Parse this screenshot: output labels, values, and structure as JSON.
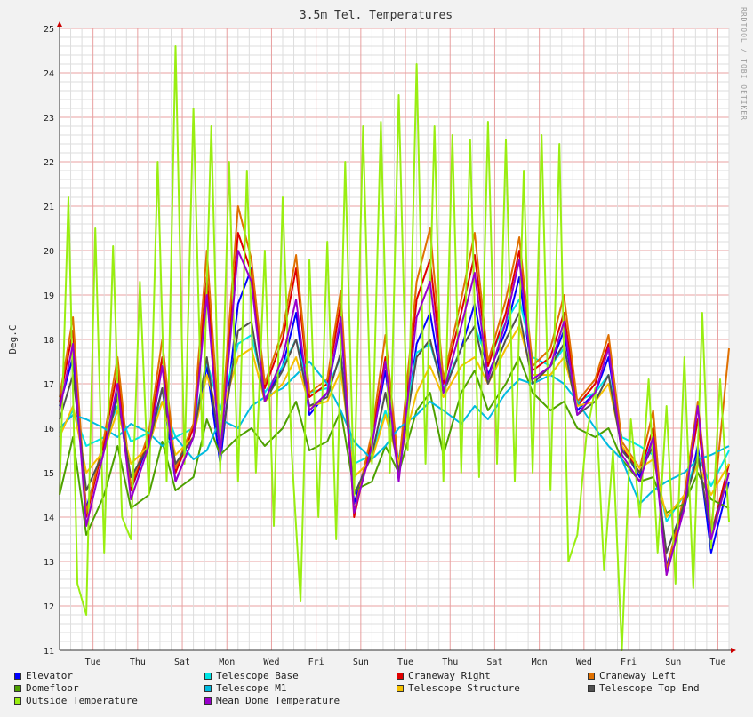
{
  "chart_data": {
    "type": "line",
    "title": "3.5m Tel. Temperatures",
    "ylabel": "Deg.C",
    "xlabel": "",
    "ylim": [
      11,
      25
    ],
    "yticks": [
      11,
      12,
      13,
      14,
      15,
      16,
      17,
      18,
      19,
      20,
      21,
      22,
      23,
      24,
      25
    ],
    "x_range_days": [
      0,
      15
    ],
    "xticks": [
      {
        "label": "Tue",
        "day": 0.75
      },
      {
        "label": "Thu",
        "day": 1.75
      },
      {
        "label": "Sat",
        "day": 2.75
      },
      {
        "label": "Mon",
        "day": 3.75
      },
      {
        "label": "Wed",
        "day": 4.75
      },
      {
        "label": "Fri",
        "day": 5.75
      },
      {
        "label": "Sun",
        "day": 6.75
      },
      {
        "label": "Tue",
        "day": 7.75
      },
      {
        "label": "Thu",
        "day": 8.75
      },
      {
        "label": "Sat",
        "day": 9.75
      },
      {
        "label": "Mon",
        "day": 10.75
      },
      {
        "label": "Wed",
        "day": 11.75
      },
      {
        "label": "Fri",
        "day": 12.75
      },
      {
        "label": "Sun",
        "day": 13.75
      },
      {
        "label": "Tue",
        "day": 14.75
      }
    ],
    "grid": true,
    "legend_position": "bottom",
    "series": [
      {
        "name": "Elevator",
        "color": "#0000ff",
        "x": [
          0,
          0.3,
          0.6,
          1,
          1.3,
          1.6,
          2,
          2.3,
          2.6,
          3,
          3.3,
          3.6,
          4,
          4.3,
          4.6,
          5,
          5.3,
          5.6,
          6,
          6.3,
          6.6,
          7,
          7.3,
          7.6,
          8,
          8.3,
          8.6,
          9,
          9.3,
          9.6,
          10,
          10.3,
          10.6,
          11,
          11.3,
          11.6,
          12,
          12.3,
          12.6,
          13,
          13.3,
          13.6,
          14,
          14.3,
          14.6,
          15
        ],
        "values": [
          16.5,
          17.6,
          14.2,
          15.6,
          16.8,
          14.6,
          15.7,
          16.9,
          14.8,
          15.8,
          17.4,
          15.2,
          18.8,
          19.6,
          16.6,
          17.4,
          18.6,
          16.3,
          16.8,
          18.4,
          14.3,
          15.7,
          17.3,
          14.9,
          17.9,
          18.6,
          16.8,
          17.8,
          18.8,
          17.2,
          18.2,
          19.4,
          17.1,
          17.4,
          18.2,
          16.4,
          16.8,
          17.6,
          15.6,
          14.9,
          15.8,
          12.9,
          14.2,
          15.6,
          13.2,
          14.8
        ]
      },
      {
        "name": "Telescope Base",
        "color": "#00e5e5",
        "x": [
          0,
          0.3,
          0.6,
          1,
          1.3,
          1.6,
          2,
          2.3,
          2.6,
          3,
          3.3,
          3.6,
          4,
          4.3,
          4.6,
          5,
          5.3,
          5.6,
          6,
          6.3,
          6.6,
          7,
          7.3,
          7.6,
          8,
          8.3,
          8.6,
          9,
          9.3,
          9.6,
          10,
          10.3,
          10.6,
          11,
          11.3,
          11.6,
          12,
          12.3,
          12.6,
          13,
          13.3,
          13.6,
          14,
          14.3,
          14.6,
          15
        ],
        "values": [
          15.9,
          16.4,
          15.6,
          15.8,
          16.5,
          15.7,
          15.9,
          16.6,
          15.8,
          16.0,
          17.5,
          16.4,
          17.9,
          18.1,
          16.8,
          17.4,
          18.0,
          16.8,
          16.9,
          17.6,
          15.2,
          15.4,
          16.4,
          15.3,
          17.7,
          17.9,
          16.9,
          17.8,
          18.3,
          17.5,
          18.4,
          18.9,
          17.6,
          17.4,
          17.8,
          16.6,
          16.8,
          17.2,
          15.8,
          15.6,
          15.4,
          13.9,
          14.5,
          15.4,
          14.7,
          15.5
        ]
      },
      {
        "name": "Craneway Right",
        "color": "#e00000",
        "x": [
          0,
          0.3,
          0.6,
          1,
          1.3,
          1.6,
          2,
          2.3,
          2.6,
          3,
          3.3,
          3.6,
          4,
          4.3,
          4.6,
          5,
          5.3,
          5.6,
          6,
          6.3,
          6.6,
          7,
          7.3,
          7.6,
          8,
          8.3,
          8.6,
          9,
          9.3,
          9.6,
          10,
          10.3,
          10.6,
          11,
          11.3,
          11.6,
          12,
          12.3,
          12.6,
          13,
          13.3,
          13.6,
          14,
          14.3,
          14.6,
          15
        ],
        "values": [
          16.6,
          18.2,
          14.0,
          15.7,
          17.3,
          14.6,
          15.8,
          17.6,
          15.0,
          16.0,
          19.4,
          15.6,
          20.4,
          19.5,
          16.9,
          18.0,
          19.6,
          16.7,
          17.0,
          18.8,
          14.0,
          15.8,
          17.6,
          15.0,
          18.9,
          19.8,
          17.0,
          18.6,
          19.9,
          17.4,
          18.6,
          20.0,
          17.3,
          17.6,
          18.6,
          16.5,
          17.0,
          17.9,
          15.6,
          15.0,
          16.0,
          12.7,
          14.4,
          16.2,
          13.6,
          15.2
        ]
      },
      {
        "name": "Craneway Left",
        "color": "#e07000",
        "x": [
          0,
          0.3,
          0.6,
          1,
          1.3,
          1.6,
          2,
          2.3,
          2.6,
          3,
          3.3,
          3.6,
          4,
          4.3,
          4.6,
          5,
          5.3,
          5.6,
          6,
          6.3,
          6.6,
          7,
          7.3,
          7.6,
          8,
          8.3,
          8.6,
          9,
          9.3,
          9.6,
          10,
          10.3,
          10.6,
          11,
          11.3,
          11.6,
          12,
          12.3,
          12.6,
          13,
          13.3,
          13.6,
          14,
          14.3,
          14.6,
          15
        ],
        "values": [
          16.7,
          18.5,
          14.1,
          15.8,
          17.6,
          14.7,
          15.9,
          18.0,
          15.1,
          16.1,
          20.0,
          15.7,
          21.0,
          19.8,
          17.0,
          18.2,
          19.9,
          16.8,
          17.1,
          19.1,
          14.1,
          15.9,
          18.1,
          15.1,
          19.3,
          20.5,
          17.1,
          18.9,
          20.4,
          17.5,
          18.9,
          20.3,
          17.4,
          17.8,
          19.0,
          16.6,
          17.1,
          18.1,
          15.7,
          15.1,
          16.4,
          12.8,
          14.5,
          16.6,
          13.7,
          17.8
        ]
      },
      {
        "name": "Domefloor",
        "color": "#4da000",
        "x": [
          0,
          0.3,
          0.6,
          1,
          1.3,
          1.6,
          2,
          2.3,
          2.6,
          3,
          3.3,
          3.6,
          4,
          4.3,
          4.6,
          5,
          5.3,
          5.6,
          6,
          6.3,
          6.6,
          7,
          7.3,
          7.6,
          8,
          8.3,
          8.6,
          9,
          9.3,
          9.6,
          10,
          10.3,
          10.6,
          11,
          11.3,
          11.6,
          12,
          12.3,
          12.6,
          13,
          13.3,
          13.6,
          14,
          14.3,
          14.6,
          15
        ],
        "values": [
          14.5,
          15.8,
          13.6,
          14.5,
          15.6,
          14.2,
          14.5,
          15.7,
          14.6,
          14.9,
          16.2,
          15.4,
          15.8,
          16.0,
          15.6,
          16.0,
          16.6,
          15.5,
          15.7,
          16.4,
          14.6,
          14.8,
          15.6,
          15.0,
          16.4,
          16.8,
          15.4,
          16.8,
          17.3,
          16.4,
          17.0,
          17.6,
          16.8,
          16.4,
          16.6,
          16.0,
          15.8,
          16.0,
          15.3,
          14.8,
          14.9,
          14.1,
          14.3,
          15.0,
          14.4,
          14.2
        ]
      },
      {
        "name": "Telescope M1",
        "color": "#00bbe0",
        "x": [
          0,
          0.3,
          0.6,
          1,
          1.3,
          1.6,
          2,
          2.3,
          2.6,
          3,
          3.3,
          3.6,
          4,
          4.3,
          4.6,
          5,
          5.3,
          5.6,
          6,
          6.3,
          6.6,
          7,
          7.3,
          7.6,
          8,
          8.3,
          8.6,
          9,
          9.3,
          9.6,
          10,
          10.3,
          10.6,
          11,
          11.3,
          11.6,
          12,
          12.3,
          12.6,
          13,
          13.3,
          13.6,
          14,
          14.3,
          14.6,
          15
        ],
        "values": [
          16.0,
          16.3,
          16.2,
          16.0,
          15.8,
          16.1,
          15.9,
          15.6,
          15.8,
          15.3,
          15.5,
          16.2,
          16.0,
          16.5,
          16.7,
          16.9,
          17.2,
          17.5,
          17.0,
          16.4,
          15.7,
          15.3,
          15.6,
          16.0,
          16.3,
          16.6,
          16.4,
          16.1,
          16.5,
          16.2,
          16.8,
          17.1,
          17.0,
          17.2,
          17.0,
          16.6,
          16.0,
          15.6,
          15.3,
          14.3,
          14.6,
          14.8,
          15.0,
          15.3,
          15.4,
          15.6
        ]
      },
      {
        "name": "Telescope Structure",
        "color": "#f5c000",
        "x": [
          0,
          0.3,
          0.6,
          1,
          1.3,
          1.6,
          2,
          2.3,
          2.6,
          3,
          3.3,
          3.6,
          4,
          4.3,
          4.6,
          5,
          5.3,
          5.6,
          6,
          6.3,
          6.6,
          7,
          7.3,
          7.6,
          8,
          8.3,
          8.6,
          9,
          9.3,
          9.6,
          10,
          10.3,
          10.6,
          11,
          11.3,
          11.6,
          12,
          12.3,
          12.6,
          13,
          13.3,
          13.6,
          14,
          14.3,
          14.6,
          15
        ],
        "values": [
          15.8,
          16.5,
          15.0,
          15.5,
          16.4,
          15.2,
          15.6,
          16.6,
          15.4,
          15.8,
          17.2,
          16.2,
          17.6,
          17.8,
          16.6,
          17.0,
          17.6,
          16.5,
          16.6,
          17.3,
          14.9,
          15.3,
          16.3,
          15.2,
          16.8,
          17.4,
          16.7,
          17.4,
          17.6,
          17.0,
          17.8,
          18.3,
          17.2,
          17.2,
          17.6,
          16.5,
          16.6,
          17.0,
          15.6,
          15.1,
          15.3,
          14.0,
          14.5,
          15.2,
          14.5,
          15.2
        ]
      },
      {
        "name": "Telescope Top End",
        "color": "#505050",
        "x": [
          0,
          0.3,
          0.6,
          1,
          1.3,
          1.6,
          2,
          2.3,
          2.6,
          3,
          3.3,
          3.6,
          4,
          4.3,
          4.6,
          5,
          5.3,
          5.6,
          6,
          6.3,
          6.6,
          7,
          7.3,
          7.6,
          8,
          8.3,
          8.6,
          9,
          9.3,
          9.6,
          10,
          10.3,
          10.6,
          11,
          11.3,
          11.6,
          12,
          12.3,
          12.6,
          13,
          13.3,
          13.6,
          14,
          14.3,
          14.6,
          15
        ],
        "values": [
          16.2,
          17.2,
          14.6,
          15.5,
          16.7,
          14.9,
          15.6,
          16.9,
          15.2,
          15.8,
          17.6,
          15.5,
          18.2,
          18.4,
          16.6,
          17.3,
          18.0,
          16.5,
          16.7,
          17.7,
          14.5,
          15.4,
          16.8,
          15.0,
          17.6,
          18.0,
          16.8,
          17.8,
          18.3,
          17.0,
          18.0,
          18.6,
          17.0,
          17.4,
          17.9,
          16.3,
          16.6,
          17.2,
          15.5,
          15.0,
          15.6,
          13.2,
          14.3,
          15.4,
          13.6,
          15.0
        ]
      },
      {
        "name": "Outside Temperature",
        "color": "#99ee11",
        "x": [
          0,
          0.2,
          0.4,
          0.6,
          0.8,
          1,
          1.2,
          1.4,
          1.6,
          1.8,
          2,
          2.2,
          2.4,
          2.6,
          2.8,
          3,
          3.2,
          3.4,
          3.6,
          3.8,
          4,
          4.2,
          4.4,
          4.6,
          4.8,
          5,
          5.2,
          5.4,
          5.6,
          5.8,
          6,
          6.2,
          6.4,
          6.6,
          6.8,
          7,
          7.2,
          7.4,
          7.6,
          7.8,
          8,
          8.2,
          8.4,
          8.6,
          8.8,
          9,
          9.2,
          9.4,
          9.6,
          9.8,
          10,
          10.2,
          10.4,
          10.6,
          10.8,
          11,
          11.2,
          11.4,
          11.6,
          11.8,
          12,
          12.2,
          12.4,
          12.6,
          12.8,
          13,
          13.2,
          13.4,
          13.6,
          13.8,
          14,
          14.2,
          14.4,
          14.6,
          14.8,
          15
        ],
        "values": [
          14.5,
          21.2,
          12.5,
          11.8,
          20.5,
          13.2,
          20.1,
          14.0,
          13.5,
          19.3,
          14.5,
          22.0,
          14.8,
          24.6,
          15.2,
          23.2,
          15.6,
          22.8,
          15.0,
          22.0,
          14.8,
          21.8,
          15.0,
          20.0,
          13.8,
          21.2,
          15.5,
          12.1,
          19.8,
          14.0,
          20.2,
          13.5,
          22.0,
          14.5,
          22.8,
          15.2,
          22.9,
          15.0,
          23.5,
          15.5,
          24.2,
          15.2,
          22.8,
          14.8,
          22.6,
          15.0,
          22.5,
          14.9,
          22.9,
          15.2,
          22.5,
          14.8,
          21.8,
          15.0,
          22.6,
          14.6,
          22.4,
          13.0,
          13.6,
          15.8,
          16.9,
          12.8,
          15.5,
          11.0,
          16.2,
          14.0,
          17.1,
          13.2,
          16.5,
          12.5,
          17.6,
          12.4,
          18.6,
          13.3,
          17.1,
          13.9
        ]
      },
      {
        "name": "Mean Dome Temperature",
        "color": "#9900cc",
        "x": [
          0,
          0.3,
          0.6,
          1,
          1.3,
          1.6,
          2,
          2.3,
          2.6,
          3,
          3.3,
          3.6,
          4,
          4.3,
          4.6,
          5,
          5.3,
          5.6,
          6,
          6.3,
          6.6,
          7,
          7.3,
          7.6,
          8,
          8.3,
          8.6,
          9,
          9.3,
          9.6,
          10,
          10.3,
          10.6,
          11,
          11.3,
          11.6,
          12,
          12.3,
          12.6,
          13,
          13.3,
          13.6,
          14,
          14.3,
          14.6,
          15
        ],
        "values": [
          16.4,
          17.9,
          13.8,
          15.5,
          17.0,
          14.4,
          15.6,
          17.4,
          14.8,
          15.8,
          19.0,
          15.4,
          20.0,
          19.3,
          16.6,
          17.6,
          18.9,
          16.4,
          16.8,
          18.5,
          14.1,
          15.6,
          17.5,
          14.8,
          18.5,
          19.3,
          16.8,
          18.3,
          19.5,
          17.1,
          18.4,
          19.8,
          17.1,
          17.4,
          18.4,
          16.3,
          16.8,
          17.8,
          15.4,
          14.8,
          15.8,
          12.7,
          14.2,
          16.5,
          13.5,
          15.0
        ]
      }
    ]
  },
  "watermark": "RRDTOOL / TOBI OETIKER"
}
